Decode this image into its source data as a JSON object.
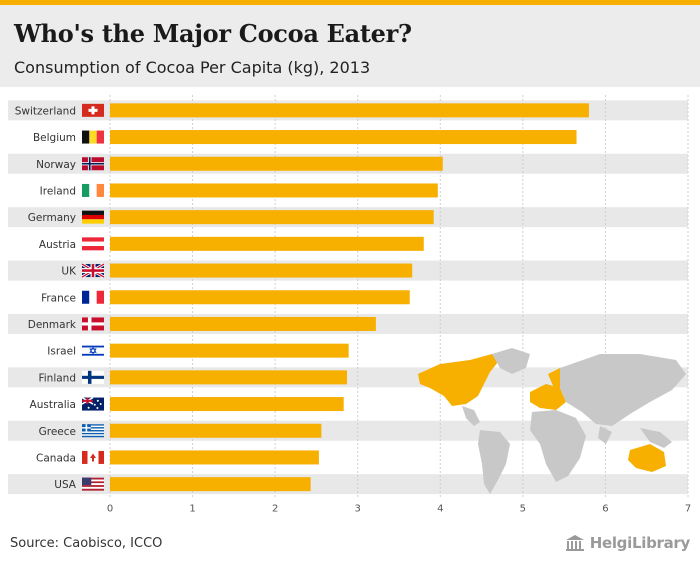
{
  "colors": {
    "bar": "#F7AF00",
    "row_band": "#e8e8e8",
    "grid": "#cfcfcf",
    "header_bg": "#ececec",
    "top_bar": "#F7AF00",
    "map_land": "#c8c8c8",
    "map_highlight": "#F7AF00"
  },
  "header": {
    "title": "Who's the Major Cocoa Eater?",
    "subtitle": "Consumption of Cocoa Per Capita (kg), 2013"
  },
  "chart_data": {
    "type": "bar",
    "orientation": "horizontal",
    "title": "Who's the Major Cocoa Eater?",
    "subtitle": "Consumption of Cocoa Per Capita (kg), 2013",
    "xlabel": "",
    "ylabel": "",
    "xlim": [
      0,
      7
    ],
    "ticks": [
      0,
      1,
      2,
      3,
      4,
      5,
      6,
      7
    ],
    "grid": true,
    "categories": [
      "Switzerland",
      "Belgium",
      "Norway",
      "Ireland",
      "Germany",
      "Austria",
      "UK",
      "France",
      "Denmark",
      "Israel",
      "Finland",
      "Australia",
      "Greece",
      "Canada",
      "USA"
    ],
    "values": [
      5.8,
      5.65,
      4.03,
      3.97,
      3.92,
      3.8,
      3.66,
      3.63,
      3.22,
      2.89,
      2.87,
      2.83,
      2.56,
      2.53,
      2.43
    ],
    "flags": [
      "ch",
      "be",
      "no",
      "ie",
      "de",
      "at",
      "uk",
      "fr",
      "dk",
      "il",
      "fi",
      "au",
      "gr",
      "ca",
      "us"
    ]
  },
  "footer": {
    "source": "Source: Caobisco, ICCO",
    "brand": "HelgiLibrary",
    "brand_icon": "library-building-icon"
  }
}
